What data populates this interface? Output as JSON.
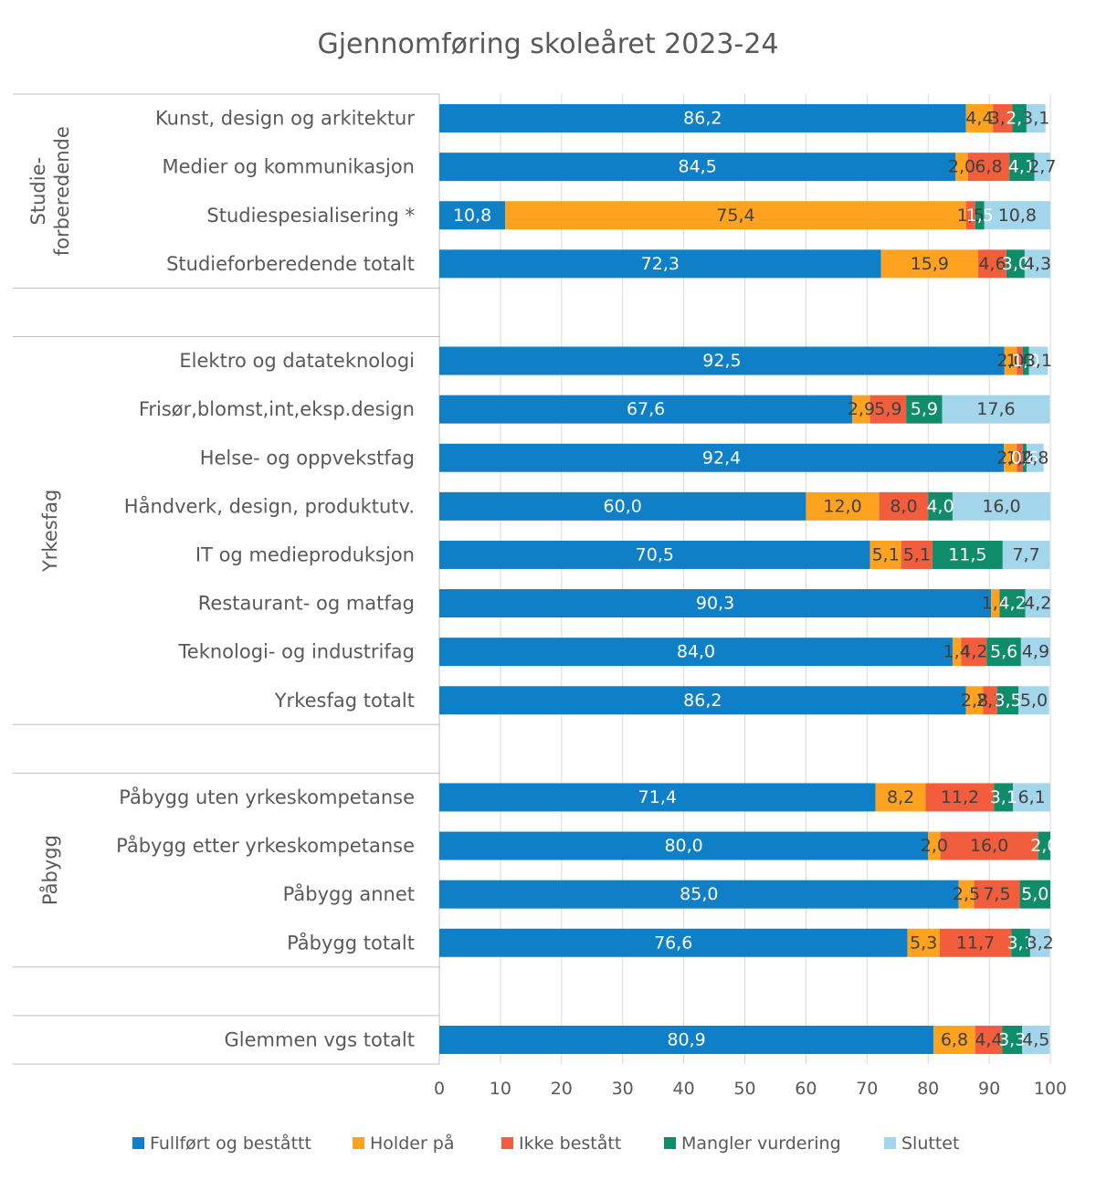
{
  "chart_data": {
    "type": "bar",
    "orientation": "horizontal-stacked",
    "title": "Gjennomføring skoleåret 2023-24",
    "xlim": [
      0,
      100
    ],
    "x_ticks": [
      "0",
      "10",
      "20",
      "30",
      "40",
      "50",
      "60",
      "70",
      "80",
      "90",
      "100"
    ],
    "grid": "vertical",
    "legend_position": "bottom",
    "series": [
      {
        "name": "Fullført og beståttt",
        "color": "#0F80C8",
        "label_color": "#ffffff"
      },
      {
        "name": "Holder på",
        "color": "#FFA21F",
        "label_color": "#404040"
      },
      {
        "name": "Ikke bestått",
        "color": "#F25E3D",
        "label_color": "#404040"
      },
      {
        "name": "Mangler vurdering",
        "color": "#0F8D6A",
        "label_color": "#ffffff"
      },
      {
        "name": "Sluttet",
        "color": "#A3D6EB",
        "label_color": "#404040"
      }
    ],
    "groups": [
      {
        "label_lines": [
          "Studie-",
          "forberedende"
        ],
        "rows": [
          {
            "label": "Kunst, design og arkitektur",
            "values": [
              86.2,
              4.4,
              3.2,
              2.3,
              3.1
            ],
            "labels": [
              "86,2",
              "4,4",
              "3,2",
              "2,3",
              "3,1"
            ]
          },
          {
            "label": "Medier og kommunikasjon",
            "values": [
              84.5,
              2.0,
              6.8,
              4.1,
              2.7
            ],
            "labels": [
              "84,5",
              "2,0",
              "6,8",
              "4,1",
              "2,7"
            ]
          },
          {
            "label": "Studiespesialisering *",
            "values": [
              10.8,
              75.4,
              1.5,
              1.5,
              10.8
            ],
            "labels": [
              "10,8",
              "75,4",
              "1,5",
              "1,5",
              "10,8"
            ]
          },
          {
            "label": "Studieforberedende totalt",
            "values": [
              72.3,
              15.9,
              4.6,
              3.0,
              4.3
            ],
            "labels": [
              "72,3",
              "15,9",
              "4,6",
              "3,0",
              "4,3"
            ]
          }
        ]
      },
      {
        "label_lines": [
          "Yrkesfag"
        ],
        "rows": [
          {
            "label": "Elektro og datateknologi",
            "values": [
              92.5,
              2.0,
              1.0,
              1.0,
              3.1
            ],
            "labels": [
              "92,5",
              "2,0",
              "1,0",
              "1,0",
              "3,1"
            ]
          },
          {
            "label": "Frisør,blomst,int,eksp.design",
            "values": [
              67.6,
              2.9,
              5.9,
              5.9,
              17.6
            ],
            "labels": [
              "67,6",
              "2,9",
              "5,9",
              "5,9",
              "17,6"
            ]
          },
          {
            "label": "Helse- og oppvekstfag",
            "values": [
              92.4,
              2.1,
              1.0,
              0.6,
              2.8
            ],
            "labels": [
              "92,4",
              "2,1",
              "1,0",
              "0,6",
              "2,8"
            ]
          },
          {
            "label": "Håndverk, design, produktutv.",
            "values": [
              60.0,
              12.0,
              8.0,
              4.0,
              16.0
            ],
            "labels": [
              "60,0",
              "12,0",
              "8,0",
              "4,0",
              "16,0"
            ]
          },
          {
            "label": "IT og medieproduksjon",
            "values": [
              70.5,
              5.1,
              5.1,
              11.5,
              7.7
            ],
            "labels": [
              "70,5",
              "5,1",
              "5,1",
              "11,5",
              "7,7"
            ]
          },
          {
            "label": "Restaurant- og matfag",
            "values": [
              90.3,
              1.4,
              0,
              4.2,
              4.2
            ],
            "labels": [
              "90,3",
              "1,4",
              "",
              "4,2",
              "4,2"
            ]
          },
          {
            "label": "Teknologi- og industrifag",
            "values": [
              84.0,
              1.4,
              4.2,
              5.6,
              4.9
            ],
            "labels": [
              "84,0",
              "1,4",
              "4,2",
              "5,6",
              "4,9"
            ]
          },
          {
            "label": "Yrkesfag totalt",
            "values": [
              86.2,
              2.8,
              2.3,
              3.5,
              5.0
            ],
            "labels": [
              "86,2",
              "2,8",
              "2,3",
              "3,5",
              "5,0"
            ]
          }
        ]
      },
      {
        "label_lines": [
          "Påbygg"
        ],
        "rows": [
          {
            "label": "Påbygg uten yrkeskompetanse",
            "values": [
              71.4,
              8.2,
              11.2,
              3.1,
              6.1
            ],
            "labels": [
              "71,4",
              "8,2",
              "11,2",
              "3,1",
              "6,1"
            ]
          },
          {
            "label": "Påbygg etter yrkeskompetanse",
            "values": [
              80.0,
              2.0,
              16.0,
              2.0,
              0
            ],
            "labels": [
              "80,0",
              "2,0",
              "16,0",
              "2,0",
              ""
            ]
          },
          {
            "label": "Påbygg annet",
            "values": [
              85.0,
              2.5,
              7.5,
              5.0,
              0
            ],
            "labels": [
              "85,0",
              "2,5",
              "7,5",
              "5,0",
              ""
            ]
          },
          {
            "label": "Påbygg totalt",
            "values": [
              76.6,
              5.3,
              11.7,
              3.1,
              3.2
            ],
            "labels": [
              "76,6",
              "5,3",
              "11,7",
              "3,1",
              "3,2"
            ]
          }
        ]
      },
      {
        "label_lines": [],
        "rows": [
          {
            "label": "Glemmen vgs totalt",
            "values": [
              80.9,
              6.8,
              4.4,
              3.3,
              4.5
            ],
            "labels": [
              "80,9",
              "6,8",
              "4,4",
              "3,3",
              "4,5"
            ]
          }
        ]
      }
    ]
  }
}
